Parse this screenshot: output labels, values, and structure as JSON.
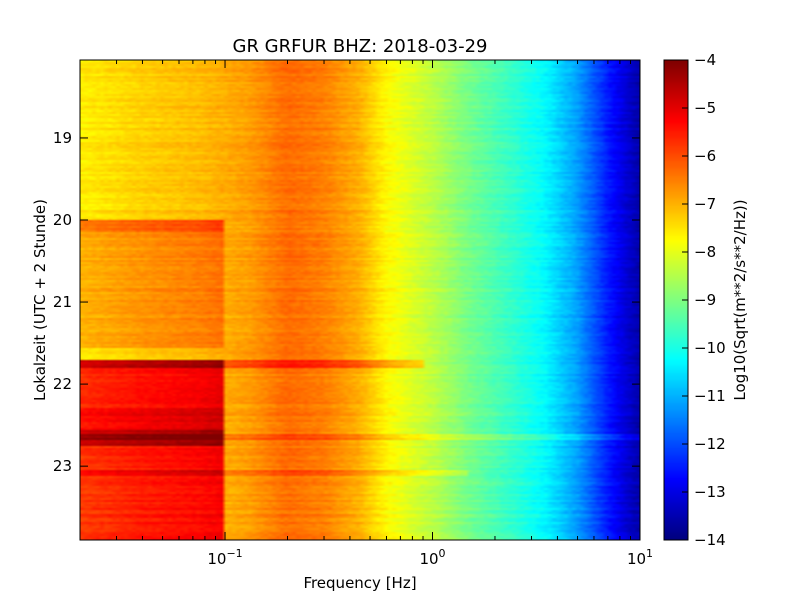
{
  "chart_data": {
    "type": "heatmap",
    "title": "GR GRFUR BHZ: 2018-03-29",
    "xlabel": "Frequency [Hz]",
    "ylabel": "Lokalzeit (UTC + 2 Stunde)",
    "x_scale": "log",
    "xlim": [
      0.02,
      10
    ],
    "ylim": [
      23.9,
      18.05
    ],
    "x_ticks": [
      {
        "value": 0.1,
        "base": "10",
        "exp": "−1"
      },
      {
        "value": 1,
        "base": "10",
        "exp": "0"
      },
      {
        "value": 10,
        "base": "10",
        "exp": "1"
      }
    ],
    "y_ticks": [
      {
        "value": 19,
        "label": "19"
      },
      {
        "value": 20,
        "label": "20"
      },
      {
        "value": 21,
        "label": "21"
      },
      {
        "value": 22,
        "label": "22"
      },
      {
        "value": 23,
        "label": "23"
      }
    ],
    "colorbar": {
      "label": "Log10(Sqrt(m**2/s**2/Hz))",
      "range": [
        -14,
        -4
      ],
      "colormap": "jet",
      "ticks": [
        {
          "value": -4,
          "label": "−4"
        },
        {
          "value": -5,
          "label": "−5"
        },
        {
          "value": -6,
          "label": "−6"
        },
        {
          "value": -7,
          "label": "−7"
        },
        {
          "value": -8,
          "label": "−8"
        },
        {
          "value": -9,
          "label": "−9"
        },
        {
          "value": -10,
          "label": "−10"
        },
        {
          "value": -11,
          "label": "−11"
        },
        {
          "value": -12,
          "label": "−12"
        },
        {
          "value": -13,
          "label": "−13"
        },
        {
          "value": -14,
          "label": "−14"
        }
      ]
    },
    "frequency_profile": [
      {
        "f": 0.02,
        "v": -7.6
      },
      {
        "f": 0.04,
        "v": -7.3
      },
      {
        "f": 0.075,
        "v": -7.1
      },
      {
        "f": 0.13,
        "v": -6.8
      },
      {
        "f": 0.2,
        "v": -6.3
      },
      {
        "f": 0.3,
        "v": -6.5
      },
      {
        "f": 0.45,
        "v": -7.0
      },
      {
        "f": 0.6,
        "v": -7.7
      },
      {
        "f": 0.8,
        "v": -8.1
      },
      {
        "f": 1.0,
        "v": -8.4
      },
      {
        "f": 1.5,
        "v": -9.1
      },
      {
        "f": 2.5,
        "v": -9.8
      },
      {
        "f": 3.5,
        "v": -10.3
      },
      {
        "f": 5.0,
        "v": -11.2
      },
      {
        "f": 7.0,
        "v": -12.5
      },
      {
        "f": 9.0,
        "v": -13.3
      },
      {
        "f": 10.0,
        "v": -13.6
      }
    ],
    "time_events": [
      {
        "t0": 18.05,
        "t1": 21.7,
        "fmax": 0.1,
        "delta": 0.0
      },
      {
        "t0": 20.0,
        "t1": 20.15,
        "fmax": 0.1,
        "delta": 1.2
      },
      {
        "t0": 20.15,
        "t1": 21.55,
        "fmax": 0.1,
        "delta": 0.6
      },
      {
        "t0": 21.7,
        "t1": 22.3,
        "fmax": 0.1,
        "delta": 1.9
      },
      {
        "t0": 21.7,
        "t1": 21.8,
        "fmax": 0.9,
        "delta": 0.9
      },
      {
        "t0": 22.3,
        "t1": 22.55,
        "fmax": 0.1,
        "delta": 2.2
      },
      {
        "t0": 22.55,
        "t1": 22.75,
        "fmax": 0.1,
        "delta": 2.8
      },
      {
        "t0": 22.75,
        "t1": 23.9,
        "fmax": 0.1,
        "delta": 1.8
      },
      {
        "t0": 22.6,
        "t1": 22.68,
        "fmax": 10,
        "delta": 0.5
      },
      {
        "t0": 23.05,
        "t1": 23.12,
        "fmax": 1.5,
        "delta": 0.5
      }
    ]
  }
}
